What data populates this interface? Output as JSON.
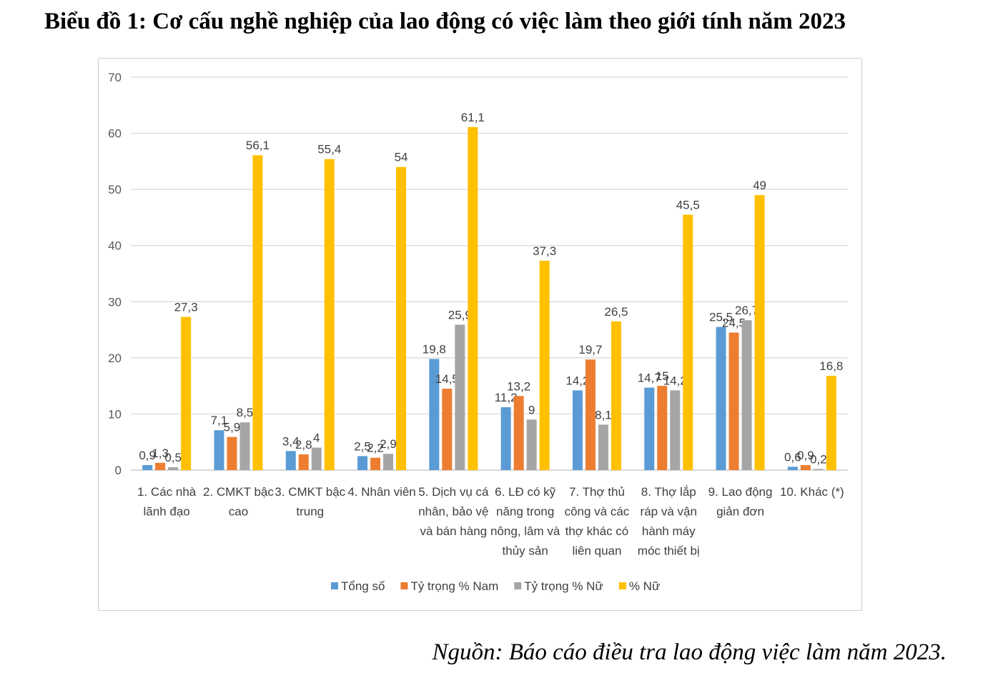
{
  "title": "Biểu đồ 1: Cơ cấu nghề nghiệp của lao động có việc làm theo giới tính năm 2023",
  "source": "Nguồn: Báo cáo điều tra lao động việc làm năm 2023.",
  "chart_data": {
    "type": "bar",
    "ylim": [
      0,
      70
    ],
    "yticks": [
      0,
      10,
      20,
      30,
      40,
      50,
      60,
      70
    ],
    "grid": true,
    "legend_position": "bottom",
    "categories": [
      [
        "1. Các nhà",
        "lãnh đạo"
      ],
      [
        "2. CMKT bậc",
        "cao"
      ],
      [
        "3. CMKT bậc",
        "trung"
      ],
      [
        "4. Nhân viên"
      ],
      [
        "5. Dịch vụ cá",
        "nhân, bảo vệ",
        "và bán hàng"
      ],
      [
        "6. LĐ có kỹ",
        "năng trong",
        "nông, lâm và",
        "thủy sản"
      ],
      [
        "7. Thợ thủ",
        "công và các",
        "thợ khác có",
        "liên quan"
      ],
      [
        "8. Thợ lắp",
        "ráp và vận",
        "hành máy",
        "móc thiết bị"
      ],
      [
        "9. Lao động",
        "giản đơn"
      ],
      [
        "10. Khác (*)"
      ]
    ],
    "series": [
      {
        "name": "Tổng số",
        "color": "#5B9BD5",
        "values": [
          0.9,
          7.1,
          3.4,
          2.5,
          19.8,
          11.2,
          14.2,
          14.7,
          25.5,
          0.6
        ],
        "labels": [
          "0,9",
          "7,1",
          "3,4",
          "2,5",
          "19,8",
          "11,2",
          "14,2",
          "14,7",
          "25,5",
          "0,6"
        ]
      },
      {
        "name": "Tỷ trọng % Nam",
        "color": "#ED7D31",
        "values": [
          1.3,
          5.9,
          2.8,
          2.2,
          14.5,
          13.2,
          19.7,
          15.0,
          24.5,
          0.9
        ],
        "labels": [
          "1,3",
          "5,9",
          "2,8",
          "2,2",
          "14,5",
          "13,2",
          "19,7",
          "15",
          "24,5",
          "0,9"
        ]
      },
      {
        "name": "Tỷ trọng % Nữ",
        "color": "#A5A5A5",
        "values": [
          0.5,
          8.5,
          4.0,
          2.9,
          25.9,
          9.0,
          8.1,
          14.2,
          26.7,
          0.2
        ],
        "labels": [
          "0,5",
          "8,5",
          "4",
          "2,9",
          "25,9",
          "9",
          "8,1",
          "14,2",
          "26,7",
          "0,2"
        ]
      },
      {
        "name": "% Nữ",
        "color": "#FFC000",
        "values": [
          27.3,
          56.1,
          55.4,
          54.0,
          61.1,
          37.3,
          26.5,
          45.5,
          49.0,
          16.8
        ],
        "labels": [
          "27,3",
          "56,1",
          "55,4",
          "54",
          "61,1",
          "37,3",
          "26,5",
          "45,5",
          "49",
          "16,8"
        ]
      }
    ]
  }
}
